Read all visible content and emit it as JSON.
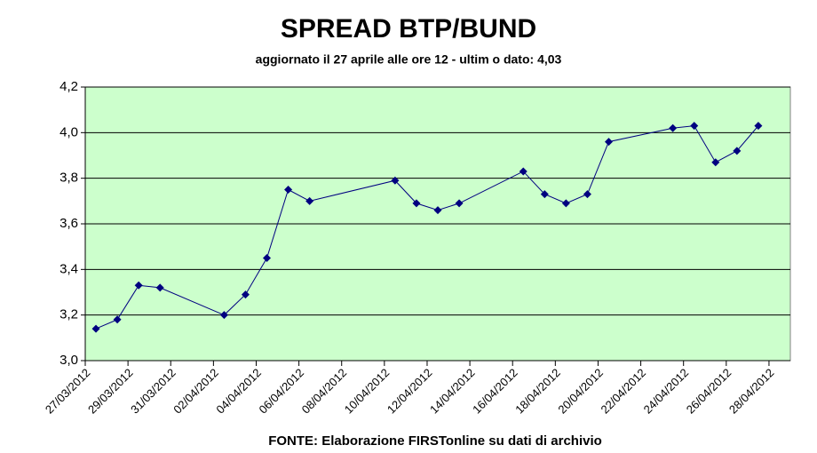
{
  "chart_data": {
    "type": "line",
    "title": "SPREAD BTP/BUND",
    "subtitle": "aggiornato il 27 aprile alle ore 12 - ultim o dato: 4,03",
    "source": "FONTE: Elaborazione FIRSTonline su dati di archivio",
    "x": [
      "27/03/2012",
      "28/03/2012",
      "29/03/2012",
      "30/03/2012",
      "02/04/2012",
      "03/04/2012",
      "04/04/2012",
      "05/04/2012",
      "06/04/2012",
      "10/04/2012",
      "11/04/2012",
      "12/04/2012",
      "13/04/2012",
      "16/04/2012",
      "17/04/2012",
      "18/04/2012",
      "19/04/2012",
      "20/04/2012",
      "23/04/2012",
      "24/04/2012",
      "25/04/2012",
      "26/04/2012",
      "27/04/2012"
    ],
    "values": [
      3.14,
      3.18,
      3.33,
      3.32,
      3.2,
      3.29,
      3.45,
      3.75,
      3.7,
      3.79,
      3.69,
      3.66,
      3.69,
      3.83,
      3.73,
      3.69,
      3.73,
      3.96,
      4.02,
      4.03,
      3.87,
      3.92,
      4.03
    ],
    "color": "#000080",
    "xlim": [
      "27/03/2012",
      "29/04/2012"
    ],
    "xticks": [
      "27/03/2012",
      "29/03/2012",
      "31/03/2012",
      "02/04/2012",
      "04/04/2012",
      "06/04/2012",
      "08/04/2012",
      "10/04/2012",
      "12/04/2012",
      "14/04/2012",
      "16/04/2012",
      "18/04/2012",
      "20/04/2012",
      "22/04/2012",
      "24/04/2012",
      "26/04/2012",
      "28/04/2012"
    ],
    "ylim": [
      3.0,
      4.2
    ],
    "yticks": [
      {
        "value": 3.0,
        "label": "3,0"
      },
      {
        "value": 3.2,
        "label": "3,2"
      },
      {
        "value": 3.4,
        "label": "3,4"
      },
      {
        "value": 3.6,
        "label": "3,6"
      },
      {
        "value": 3.8,
        "label": "3,8"
      },
      {
        "value": 4.0,
        "label": "4,0"
      },
      {
        "value": 4.2,
        "label": "4,2"
      }
    ],
    "grid": true
  }
}
